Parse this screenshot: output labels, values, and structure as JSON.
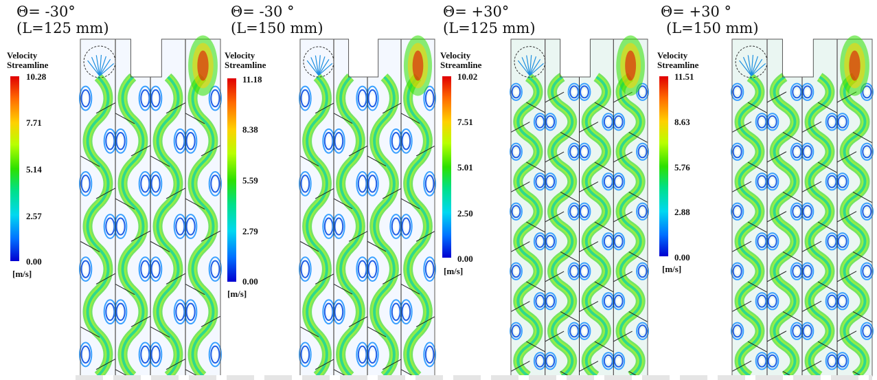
{
  "panels": [
    {
      "caption_angle": "Θ= -30°",
      "caption_length": "(L=125 mm)",
      "legend_title_1": "Velocity",
      "legend_title_2": "Streamline",
      "ticks": [
        "10.28",
        "7.71",
        "5.14",
        "2.57",
        "0.00"
      ],
      "unit": "[m/s]"
    },
    {
      "caption_angle": "Θ= -30 °",
      "caption_length": "(L=150 mm)",
      "legend_title_1": "Velocity",
      "legend_title_2": "Streamline",
      "ticks": [
        "11.18",
        "8.38",
        "5.59",
        "2.79",
        "0.00"
      ],
      "unit": "[m/s]"
    },
    {
      "caption_angle": "Θ= +30°",
      "caption_length": "(L=125 mm)",
      "legend_title_1": "Velocity",
      "legend_title_2": "Streamline",
      "ticks": [
        "10.02",
        "7.51",
        "5.01",
        "2.50",
        "0.00"
      ],
      "unit": "[m/s]"
    },
    {
      "caption_angle": "Θ= +30 °",
      "caption_length": "(L=150 mm)",
      "legend_title_1": "Velocity",
      "legend_title_2": "Streamline",
      "ticks": [
        "11.51",
        "8.63",
        "5.76",
        "2.88",
        "0.00"
      ],
      "unit": "[m/s]"
    }
  ],
  "colors": {
    "scale_max": "#e00000",
    "scale_high": "#ffd000",
    "scale_mid": "#2de000",
    "scale_low": "#00d8f0",
    "scale_min": "#0000d0",
    "baffle": "#222222"
  }
}
